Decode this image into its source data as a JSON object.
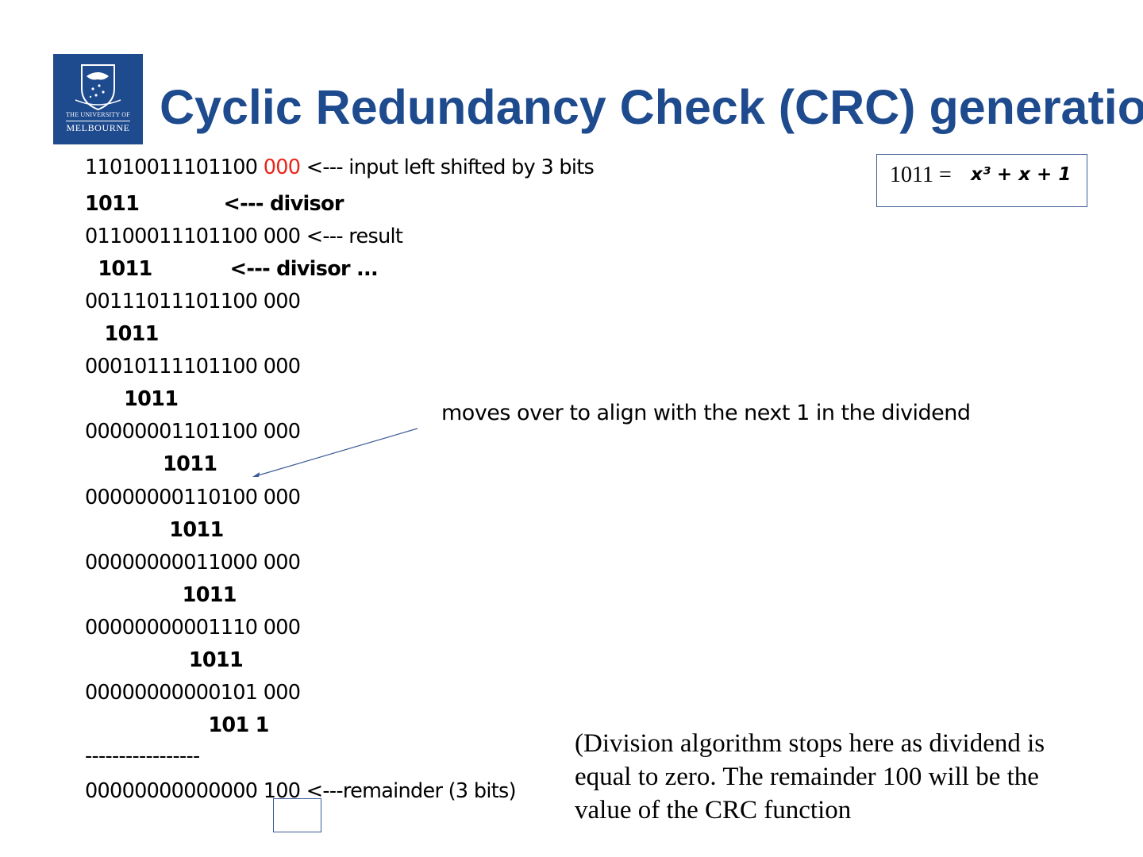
{
  "header": {
    "title": "Cyclic Redundancy Check (CRC) generatio",
    "logo": {
      "line1": "THE UNIVERSITY OF",
      "line2": "MELBOURNE",
      "brand_color": "#1e4a8e"
    }
  },
  "lines": [
    {
      "main": "11010011101100 ",
      "highlight": "000",
      "rest": " <--- input left shifted by 3 bits"
    },
    {
      "text": "1011             <--- divisor"
    },
    {
      "text": "01100011101100 000 <--- result"
    },
    {
      "text": "  1011            <--- divisor ..."
    },
    {
      "text": "00111011101100 000"
    },
    {
      "text": "   1011"
    },
    {
      "text": "00010111101100 000"
    },
    {
      "text": "      1011"
    },
    {
      "text": "00000001101100 000"
    },
    {
      "text": "            1011"
    },
    {
      "text": "00000000110100 000"
    },
    {
      "text": "             1011"
    },
    {
      "text": "00000000011000 000"
    },
    {
      "text": "               1011"
    },
    {
      "text": "00000000001110 000"
    },
    {
      "text": "                1011"
    },
    {
      "text": "00000000000101 000"
    },
    {
      "text": "                   101 1"
    },
    {
      "text": "-----------------"
    },
    {
      "text": "00000000000000 100 <---remainder (3 bits)"
    }
  ],
  "formula": {
    "lhs": "1011 =",
    "rhs": "x³ + x + 1"
  },
  "annotation": "moves over to align with the next 1 in the dividend",
  "note": "(Division algorithm stops here as dividend is equal to zero. The remainder 100 will be the value of the CRC function",
  "colors": {
    "highlight": "#e8261c",
    "title": "#1e4a8e",
    "box_border": "#3b5b94"
  }
}
